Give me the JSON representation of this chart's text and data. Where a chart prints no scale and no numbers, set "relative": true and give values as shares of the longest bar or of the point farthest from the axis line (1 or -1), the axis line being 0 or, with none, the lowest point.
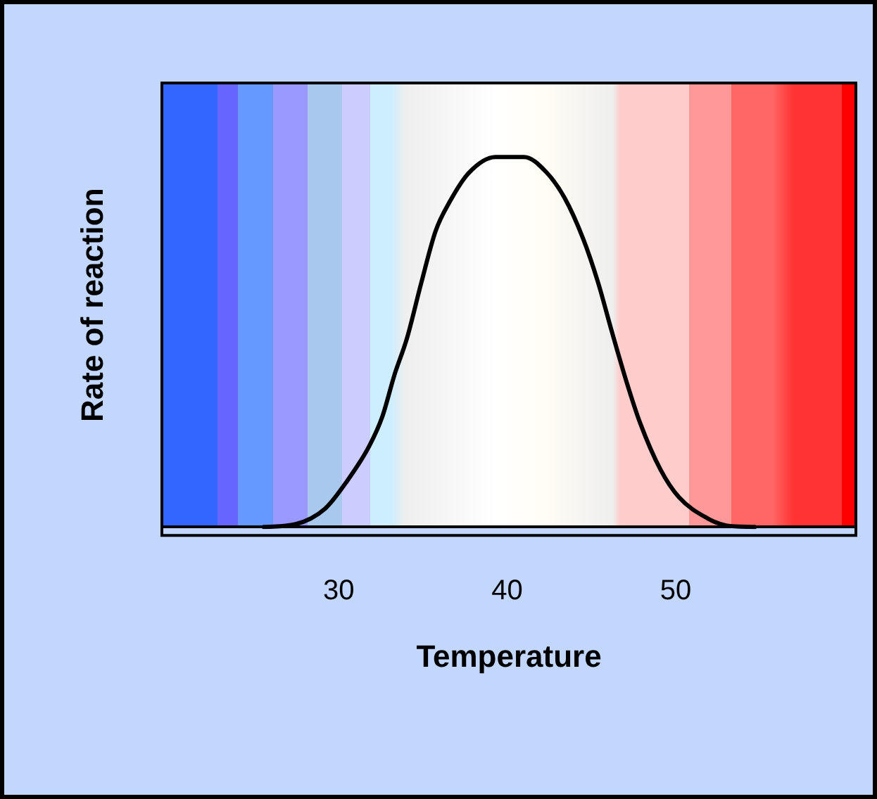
{
  "chart_data": {
    "type": "line",
    "xlabel": "Temperature",
    "ylabel": "Rate of reaction",
    "relative": true,
    "xlim": [
      19.5,
      60.7
    ],
    "xticks": [
      30,
      40,
      50
    ],
    "grid": false,
    "legend": false,
    "marker": "none",
    "line_style": "solid",
    "series": [
      {
        "color": "#000000",
        "x": [
          25.55,
          27.4,
          29.2,
          30.4,
          31.8,
          32.6,
          33.3,
          34.05,
          34.9,
          35.75,
          36.6,
          37.7,
          39.3,
          41.0,
          42.3,
          43.4,
          44.5,
          45.4,
          46.2,
          47.1,
          47.9,
          49.1,
          50.2,
          51.9,
          53.0,
          54.7
        ],
        "values": [
          0,
          0.007,
          0.05,
          0.118,
          0.218,
          0.3,
          0.41,
          0.51,
          0.66,
          0.8,
          0.88,
          0.956,
          1,
          1,
          0.96,
          0.89,
          0.78,
          0.66,
          0.53,
          0.39,
          0.28,
          0.155,
          0.08,
          0.023,
          0.004,
          0
        ]
      }
    ]
  }
}
